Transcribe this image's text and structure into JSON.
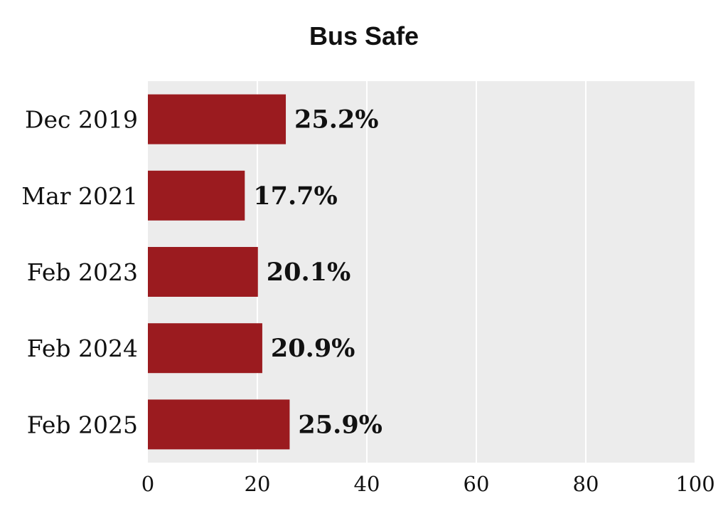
{
  "chart_data": {
    "type": "bar",
    "orientation": "horizontal",
    "title": "Bus Safe",
    "xlabel": "",
    "ylabel": "",
    "categories": [
      "Dec 2019",
      "Mar 2021",
      "Feb 2023",
      "Feb 2024",
      "Feb 2025"
    ],
    "values": [
      25.2,
      17.7,
      20.1,
      20.9,
      25.9
    ],
    "value_labels": [
      "25.2%",
      "17.7%",
      "20.1%",
      "20.9%",
      "25.9%"
    ],
    "xlim": [
      0,
      100
    ],
    "xticks": [
      0,
      20,
      40,
      60,
      80,
      100
    ],
    "xtick_labels": [
      "0",
      "20",
      "40",
      "60",
      "80",
      "100"
    ],
    "grid": true,
    "colors": {
      "bar": "#9b1b1f",
      "plot_background": "#ececec",
      "gridline": "#ffffff"
    }
  }
}
